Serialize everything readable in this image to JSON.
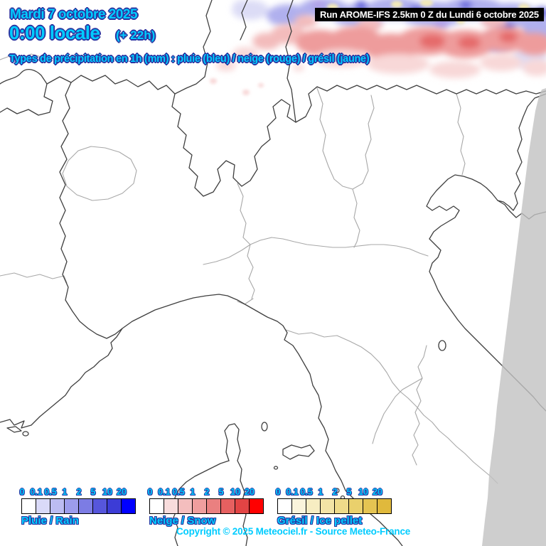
{
  "header": {
    "date": "Mardi 7 octobre 2025",
    "local_time": "0:00 locale",
    "forecast_offset": "(+ 22h)",
    "run_info": "Run AROME-IFS 2.5km 0 Z du Lundi 6 octobre 2025"
  },
  "map_title": "Types de précipitation en 1h (mm) : pluie (bleu) / neige (rouge) / grésil (jaune)",
  "legends": [
    {
      "id": "rain",
      "label": "Pluie / Rain",
      "ticks": [
        "0",
        "0.1",
        "0.5",
        "1",
        "2",
        "5",
        "10",
        "20"
      ],
      "colors": [
        "#ffffff",
        "#dadaf8",
        "#bcbcf2",
        "#9c9cec",
        "#7c7ce4",
        "#5656dc",
        "#3c3cd6",
        "#0000ff"
      ]
    },
    {
      "id": "snow",
      "label": "Neige / Snow",
      "ticks": [
        "0",
        "0.1",
        "0.5",
        "1",
        "2",
        "5",
        "10",
        "20"
      ],
      "colors": [
        "#ffffff",
        "#f8dcdc",
        "#f4bebe",
        "#f09e9e",
        "#ea8080",
        "#e66060",
        "#e24444",
        "#ff0000"
      ]
    },
    {
      "id": "ice",
      "label": "Grésil / Ice pellet",
      "ticks": [
        "0",
        "0.1",
        "0.5",
        "1",
        "2",
        "5",
        "10",
        "20"
      ],
      "colors": [
        "#ffffff",
        "#faf4dc",
        "#f7edc2",
        "#f3e4a6",
        "#efdb8a",
        "#ead06c",
        "#e5c452",
        "#e0b93c"
      ]
    }
  ],
  "copyright": "Copyright © 2025 Meteociel.fr - Source Meteo-France",
  "colors": {
    "text_fill": "#00ccff",
    "text_outline": "#2a35a0",
    "run_bar_bg": "#000000",
    "run_bar_text": "#ffffff",
    "country_border": "#3f3f3f",
    "region_border": "#a8a8a8",
    "out_of_domain": "#c2c2c2",
    "sea_and_land": "#ffffff",
    "precip_rain_light": "#dcdcf6",
    "precip_rain_mid": "#b0b0ee",
    "precip_rain_strong": "#7d7de0",
    "precip_rain_core": "#6464da",
    "precip_rain_purple": "#b0a0e8",
    "precip_snow_light": "#f8d8d8",
    "precip_snow_mid": "#f3bcbc",
    "precip_snow_strong": "#ee9c9c",
    "precip_snow_core": "#e56a6a",
    "precip_ice": "#f2e9b8"
  }
}
